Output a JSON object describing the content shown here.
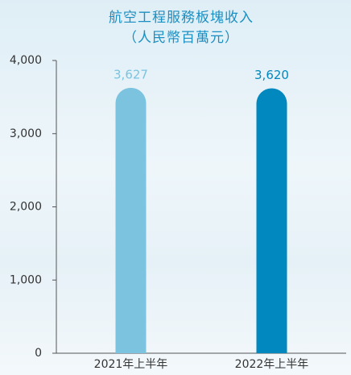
{
  "chart_data": {
    "type": "bar",
    "title": "航空工程服務板塊收入",
    "subtitle": "（人民幣百萬元）",
    "categories": [
      "2021年上半年",
      "2022年上半年"
    ],
    "values": [
      3627,
      3620
    ],
    "value_labels": [
      "3,627",
      "3,620"
    ],
    "colors": [
      "#7cc3e0",
      "#0088bf"
    ],
    "ylim": [
      0,
      4000
    ],
    "yticks": [
      0,
      {
        "value": 1000,
        "label": "1,000"
      },
      {
        "value": 2000,
        "label": "2,000"
      },
      {
        "value": 3000,
        "label": "3,000"
      },
      {
        "value": 4000,
        "label": "4,000"
      }
    ],
    "grid": false
  }
}
